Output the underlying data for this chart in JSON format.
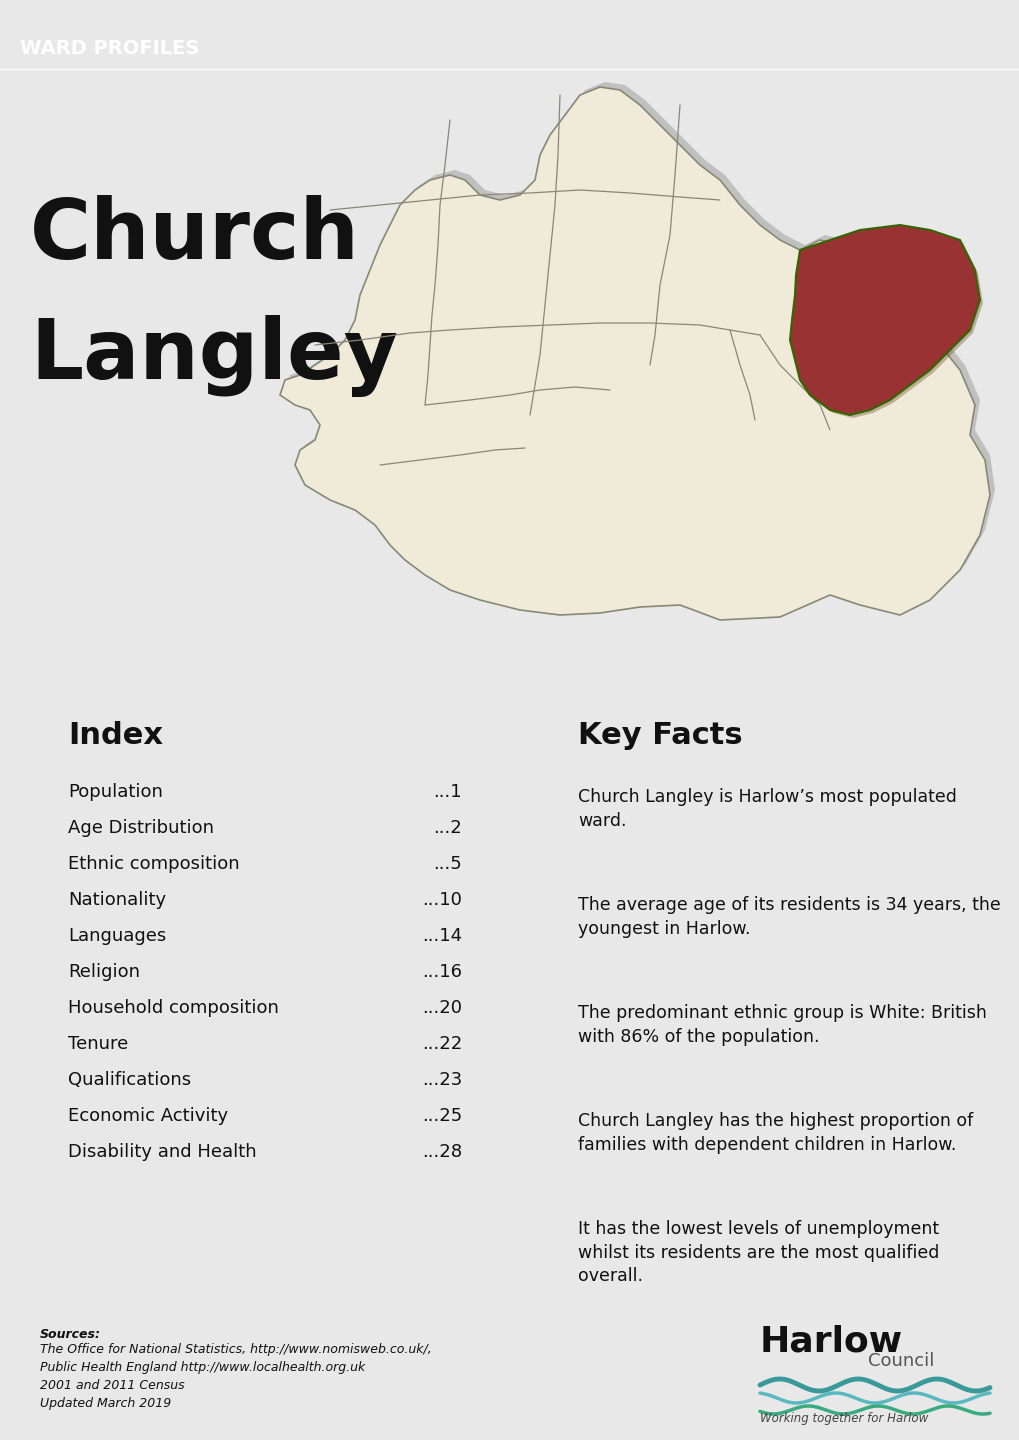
{
  "header_label": "WARD PROFILES",
  "header_bg": "#b94a4a",
  "header_text_color": "#ffffff",
  "top_section_bg": "#b8b8b8",
  "divider_color": "#b94a4a",
  "bottom_bg": "#7a9a2e",
  "card_bg": "#f0f0f0",
  "card_shadow": "#c0c0c0",
  "white_bg": "#f5f5f5",
  "page_bg": "#e8e8e8",
  "index_title": "Index",
  "index_items": [
    [
      "Population",
      "...1"
    ],
    [
      "Age Distribution",
      "...2"
    ],
    [
      "Ethnic composition",
      "...5"
    ],
    [
      "Nationality",
      "...10"
    ],
    [
      "Languages",
      "...14"
    ],
    [
      "Religion",
      "...16"
    ],
    [
      "Household composition",
      "...20"
    ],
    [
      "Tenure",
      "...22"
    ],
    [
      "Qualifications",
      "...23"
    ],
    [
      "Economic Activity",
      "...25"
    ],
    [
      "Disability and Health",
      "...28"
    ]
  ],
  "key_facts_title": "Key Facts",
  "key_facts": [
    "Church Langley is Harlow’s most populated\nward.",
    "The average age of its residents is 34 years, the\nyoungest in Harlow.",
    "The predominant ethnic group is White: British\nwith 86% of the population.",
    "Church Langley has the highest proportion of\nfamilies with dependent children in Harlow.",
    "It has the lowest levels of unemployment\nwhilst its residents are the most qualified\noverall."
  ],
  "ward_name_line1": "Church",
  "ward_name_line2": "Langley",
  "sources_line1": "Sources:",
  "sources_rest": "The Office for National Statistics, http://www.nomisweb.co.uk/,\nPublic Health England http://www.localhealth.org.uk\n2001 and 2011 Census\nUpdated March 2019"
}
